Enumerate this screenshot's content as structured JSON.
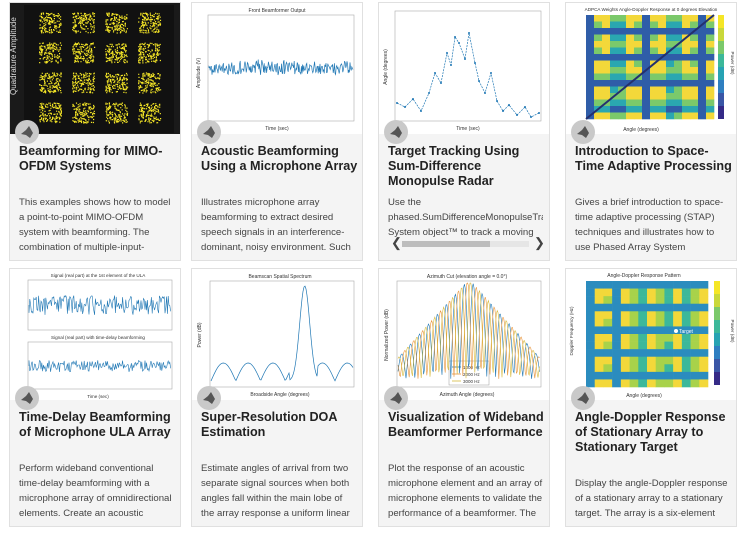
{
  "cards": [
    {
      "title": "Beamforming for MIMO-OFDM Systems",
      "desc": "This examples shows how to model a point-to-point MIMO-OFDM system with beamforming. The combination of multiple-input-",
      "thumb_label": "Quadrature Amplitude"
    },
    {
      "title": "Acoustic Beamforming Using a Microphone Array",
      "desc": "Illustrates microphone array beamforming to extract desired speech signals in an interference-dominant, noisy environment. Such",
      "thumb_title": "Front Beamformer Output",
      "thumb_xlabel": "Time (sec)",
      "thumb_ylabel": "Amplitude (V)"
    },
    {
      "title": "Target Tracking Using Sum-Difference Monopulse Radar",
      "desc_lines": [
        "Use the",
        "phased.SumDifferenceMonopulseTrack",
        "System object™ to track a moving"
      ],
      "thumb_xlabel": "Time (sec)",
      "thumb_ylabel": "Angle (degrees)"
    },
    {
      "title": "Introduction to Space-Time Adaptive Processing",
      "desc": "Gives a brief introduction to space-time adaptive processing (STAP) techniques and illustrates how to use Phased Array System",
      "thumb_title": "ADPCA Weights Angle-Doppler Response at 0 degrees Elevation",
      "thumb_xlabel": "Angle (degrees)",
      "thumb_ylabel": "Power (dB)"
    },
    {
      "title": "Time-Delay Beamforming of Microphone ULA Array",
      "desc": "Perform wideband conventional time-delay beamforming with a microphone array of omnidirectional elements. Create an acoustic",
      "thumb_title1": "Signal (real part) at the 1st element of the ULA",
      "thumb_title2": "Signal (real part) with time-delay beamforming",
      "thumb_xlabel": "Time (sec)"
    },
    {
      "title": "Super-Resolution DOA Estimation",
      "desc": "Estimate angles of arrival from two separate signal sources when both angles fall within the main lobe of the array response a uniform linear",
      "thumb_title": "Beamscan Spatial Spectrum",
      "thumb_xlabel": "Broadside Angle (degrees)",
      "thumb_ylabel": "Power (dB)"
    },
    {
      "title": "Visualization of Wideband Beamformer Performance",
      "desc": "Plot the response of an acoustic microphone element and an array of microphone elements to validate the performance of a beamformer. The",
      "thumb_title": "Azimuth Cut (elevation angle = 0.0°)",
      "thumb_xlabel": "Azimuth Angle (degrees)",
      "thumb_ylabel": "Normalized Power (dB)",
      "legend": [
        "1000 Hz",
        "2000 Hz",
        "3000 Hz"
      ]
    },
    {
      "title": "Angle-Doppler Response of Stationary Array to Stationary Target",
      "desc": "Display the angle-Doppler response of a stationary array to a stationary target. The array is a six-element uniform linear array (ULA) located at",
      "thumb_title": "Angle-Doppler Response Pattern",
      "thumb_xlabel": "Angle (degrees)",
      "thumb_ylabel": "Doppler Frequency (Hz)",
      "thumb_target": "Target",
      "thumb_cbar": "Power (dB)"
    }
  ],
  "colors": {
    "line": "#1f77b4",
    "orange": "#e8943a",
    "yellow": "#f5e626",
    "teal": "#27b3a3",
    "navy": "#24306e"
  },
  "icons": {
    "badge": "matlab-logo-icon",
    "scroll_left": "chevron-left-icon",
    "scroll_right": "chevron-right-icon"
  }
}
